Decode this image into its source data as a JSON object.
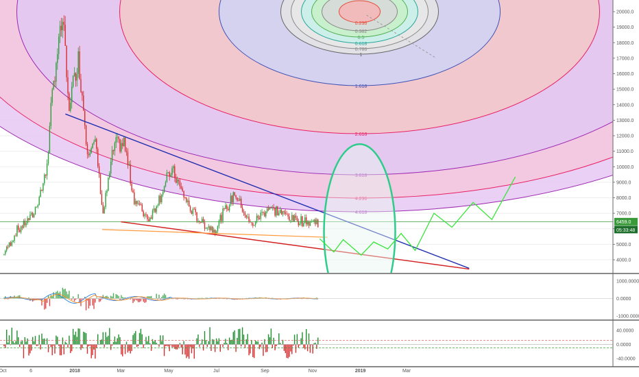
{
  "colors": {
    "background": "#ffffff",
    "grid": "#eeeeee",
    "up_candle": "#2e9e3a",
    "down_candle": "#d62d2d",
    "trend_blue": "#1f2fb0",
    "trend_red": "#d41f1f",
    "trend_orange": "#ff9a3c",
    "projection": "#39e639",
    "ellipse": "#2ecc8a",
    "price_line": "#3a9a3a",
    "macd_line": "#2a7de1",
    "signal_line": "#ff8c1a",
    "rsi_up": "#1f8f2f",
    "rsi_down": "#d62d2d"
  },
  "chart_data": [
    {
      "type": "candlestick",
      "panel": "price",
      "x_ticks": [
        "Oct",
        "6",
        "2018",
        "Mar",
        "May",
        "Jul",
        "Sep",
        "Nov",
        "2019",
        "Mar"
      ],
      "y_ticks": [
        "20000.0",
        "19000.0",
        "18000.0",
        "17000.0",
        "16000.0",
        "15000.0",
        "14000.0",
        "13000.0",
        "12000.0",
        "11000.0",
        "10000.0",
        "9000.0",
        "8000.0",
        "7000.0",
        "6000.0",
        "5000.0",
        "4000.0"
      ],
      "ylim": [
        3400,
        20800
      ],
      "current_price": "6459.0",
      "countdown": "05:33:48",
      "price_anchors": [
        {
          "date": "2017-10-01",
          "close": 4300
        },
        {
          "date": "2017-10-20",
          "close": 5900
        },
        {
          "date": "2017-11-10",
          "close": 7000
        },
        {
          "date": "2017-11-25",
          "close": 9500
        },
        {
          "date": "2017-12-07",
          "close": 16500
        },
        {
          "date": "2017-12-17",
          "close": 19600
        },
        {
          "date": "2017-12-24",
          "close": 13800
        },
        {
          "date": "2018-01-06",
          "close": 17000
        },
        {
          "date": "2018-01-17",
          "close": 11200
        },
        {
          "date": "2018-01-28",
          "close": 11400
        },
        {
          "date": "2018-02-06",
          "close": 6900
        },
        {
          "date": "2018-02-20",
          "close": 11300
        },
        {
          "date": "2018-03-05",
          "close": 11500
        },
        {
          "date": "2018-03-18",
          "close": 7900
        },
        {
          "date": "2018-04-06",
          "close": 6600
        },
        {
          "date": "2018-05-05",
          "close": 9800
        },
        {
          "date": "2018-05-29",
          "close": 7200
        },
        {
          "date": "2018-06-12",
          "close": 6400
        },
        {
          "date": "2018-06-29",
          "close": 5900
        },
        {
          "date": "2018-07-24",
          "close": 8300
        },
        {
          "date": "2018-08-14",
          "close": 6200
        },
        {
          "date": "2018-09-05",
          "close": 7400
        },
        {
          "date": "2018-10-10",
          "close": 6600
        },
        {
          "date": "2018-10-25",
          "close": 6450
        },
        {
          "date": "2018-11-08",
          "close": 6459
        }
      ],
      "fibonacci_circles": {
        "levels": [
          "0.236",
          "0.382",
          "0.5",
          "0.618",
          "0.786",
          "1",
          "1.618",
          "2.618",
          "3.618",
          "4.236",
          "4.618"
        ],
        "level_colors": [
          "#e74c3c",
          "#888888",
          "#4caf50",
          "#26a69a",
          "#888888",
          "#666666",
          "#3f51b5",
          "#e91e63",
          "#9c27b0",
          "#e91e63",
          "#9c27b0"
        ],
        "center": {
          "date": "2018-12-31",
          "price": 20000
        }
      },
      "trendlines": [
        {
          "name": "descending resistance",
          "from": {
            "date": "2017-12-20",
            "price": 13400
          },
          "to": {
            "date": "2019-05-20",
            "price": 3450
          }
        },
        {
          "name": "descending support",
          "from": {
            "date": "2018-03-01",
            "price": 6450
          },
          "to": {
            "date": "2019-05-20",
            "price": 3400
          }
        },
        {
          "name": "horizontal support",
          "from": {
            "date": "2018-02-05",
            "price": 5950
          },
          "to": {
            "date": "2018-11-20",
            "price": 5450
          }
        }
      ],
      "projection": [
        {
          "date": "2018-11-10",
          "price": 5350
        },
        {
          "date": "2018-11-28",
          "price": 4500
        },
        {
          "date": "2018-12-10",
          "price": 5300
        },
        {
          "date": "2019-01-02",
          "price": 4300
        },
        {
          "date": "2019-01-18",
          "price": 5150
        },
        {
          "date": "2019-02-05",
          "price": 4700
        },
        {
          "date": "2019-02-22",
          "price": 5700
        },
        {
          "date": "2019-03-12",
          "price": 4600
        },
        {
          "date": "2019-04-05",
          "price": 7000
        },
        {
          "date": "2019-04-28",
          "price": 6100
        },
        {
          "date": "2019-05-25",
          "price": 7700
        },
        {
          "date": "2019-06-18",
          "price": 6600
        },
        {
          "date": "2019-07-18",
          "price": 9350
        }
      ],
      "highlight_ellipse": {
        "center": {
          "date": "2018-12-31",
          "price": 5800
        },
        "label": ""
      }
    },
    {
      "type": "histogram",
      "panel": "macd",
      "y_ticks": [
        "1000.0000",
        "0.0000",
        "-1000.0000"
      ],
      "ylim": [
        -1200,
        1300
      ]
    },
    {
      "type": "histogram",
      "panel": "rsi",
      "y_ticks": [
        "40.0000",
        "0.0000",
        "-40.0000"
      ],
      "ylim": [
        -55,
        55
      ],
      "reference_lines": [
        12,
        -10
      ]
    }
  ]
}
